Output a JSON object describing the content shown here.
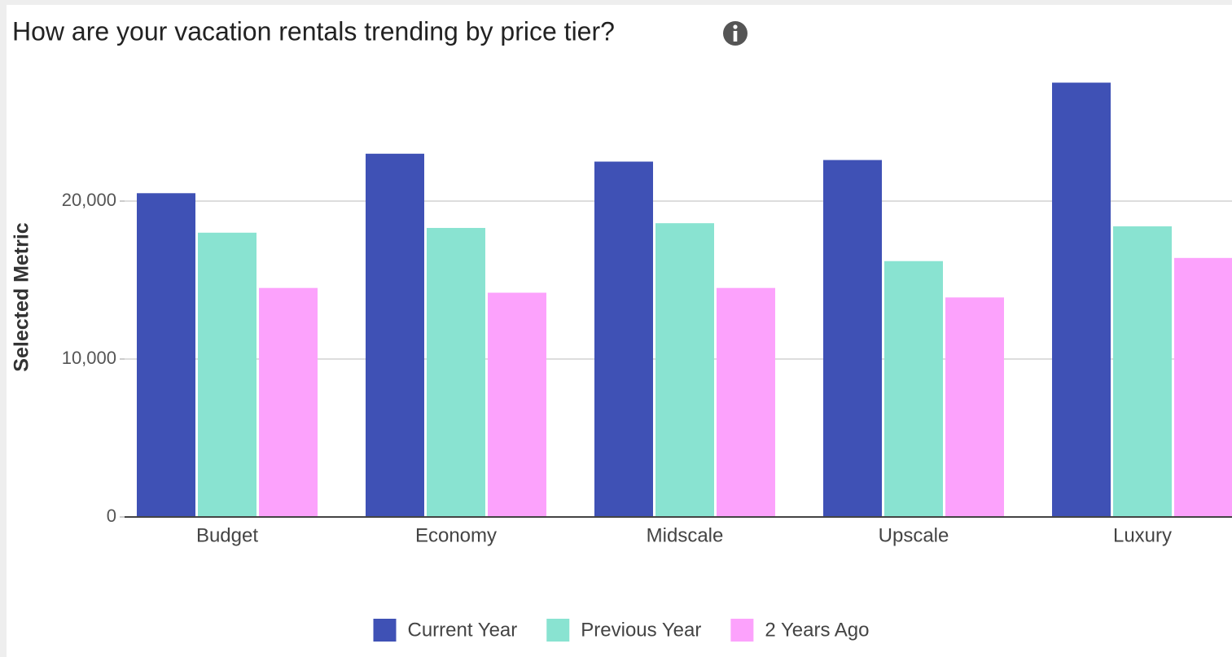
{
  "chart_data": {
    "type": "bar",
    "title": "How are your vacation rentals trending by price tier?",
    "y_label": "Selected Metric",
    "categories": [
      "Budget",
      "Economy",
      "Midscale",
      "Upscale",
      "Luxury"
    ],
    "series": [
      {
        "name": "Current Year",
        "color": "#3f51b5",
        "values": [
          20500,
          23000,
          22500,
          22600,
          27500
        ]
      },
      {
        "name": "Previous Year",
        "color": "#89e3d1",
        "values": [
          18000,
          18300,
          18600,
          16200,
          18400
        ]
      },
      {
        "name": "2 Years Ago",
        "color": "#fca2fc",
        "values": [
          14500,
          14200,
          14500,
          13900,
          16400
        ]
      }
    ],
    "ylim": [
      0,
      30000
    ],
    "yticks": [
      0,
      {
        "value": 10000,
        "label": "10,000"
      },
      {
        "value": 20000,
        "label": "20,000"
      }
    ],
    "grid": true,
    "legend": "bottom"
  }
}
